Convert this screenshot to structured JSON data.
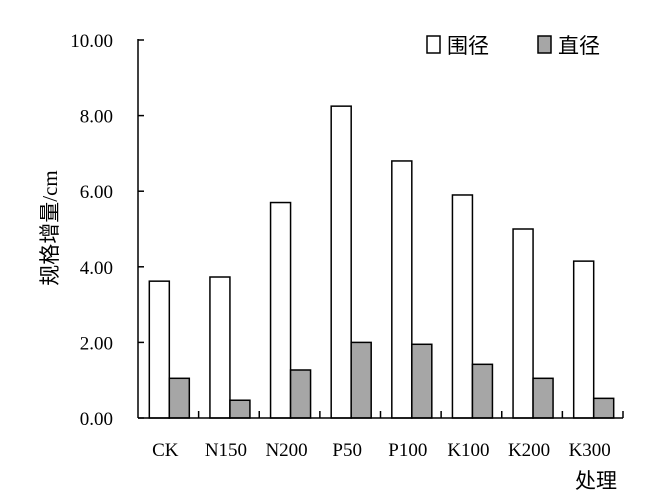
{
  "chart_data": {
    "type": "bar",
    "categories": [
      "CK",
      "N150",
      "N200",
      "P50",
      "P100",
      "K100",
      "K200",
      "K300"
    ],
    "series": [
      {
        "name": "围径",
        "color": "#ffffff",
        "values": [
          3.62,
          3.73,
          5.7,
          8.25,
          6.8,
          5.9,
          5.0,
          4.15
        ]
      },
      {
        "name": "直径",
        "color": "#a6a6a6",
        "values": [
          1.05,
          0.47,
          1.27,
          2.0,
          1.95,
          1.42,
          1.05,
          0.52
        ]
      }
    ],
    "title": "",
    "xlabel": "处理",
    "ylabel": "规格增量/cm",
    "ylim": [
      0,
      10
    ],
    "yticks": [
      "0.00",
      "2.00",
      "4.00",
      "6.00",
      "8.00",
      "10.00"
    ],
    "grid": false,
    "legend": "top-right"
  }
}
